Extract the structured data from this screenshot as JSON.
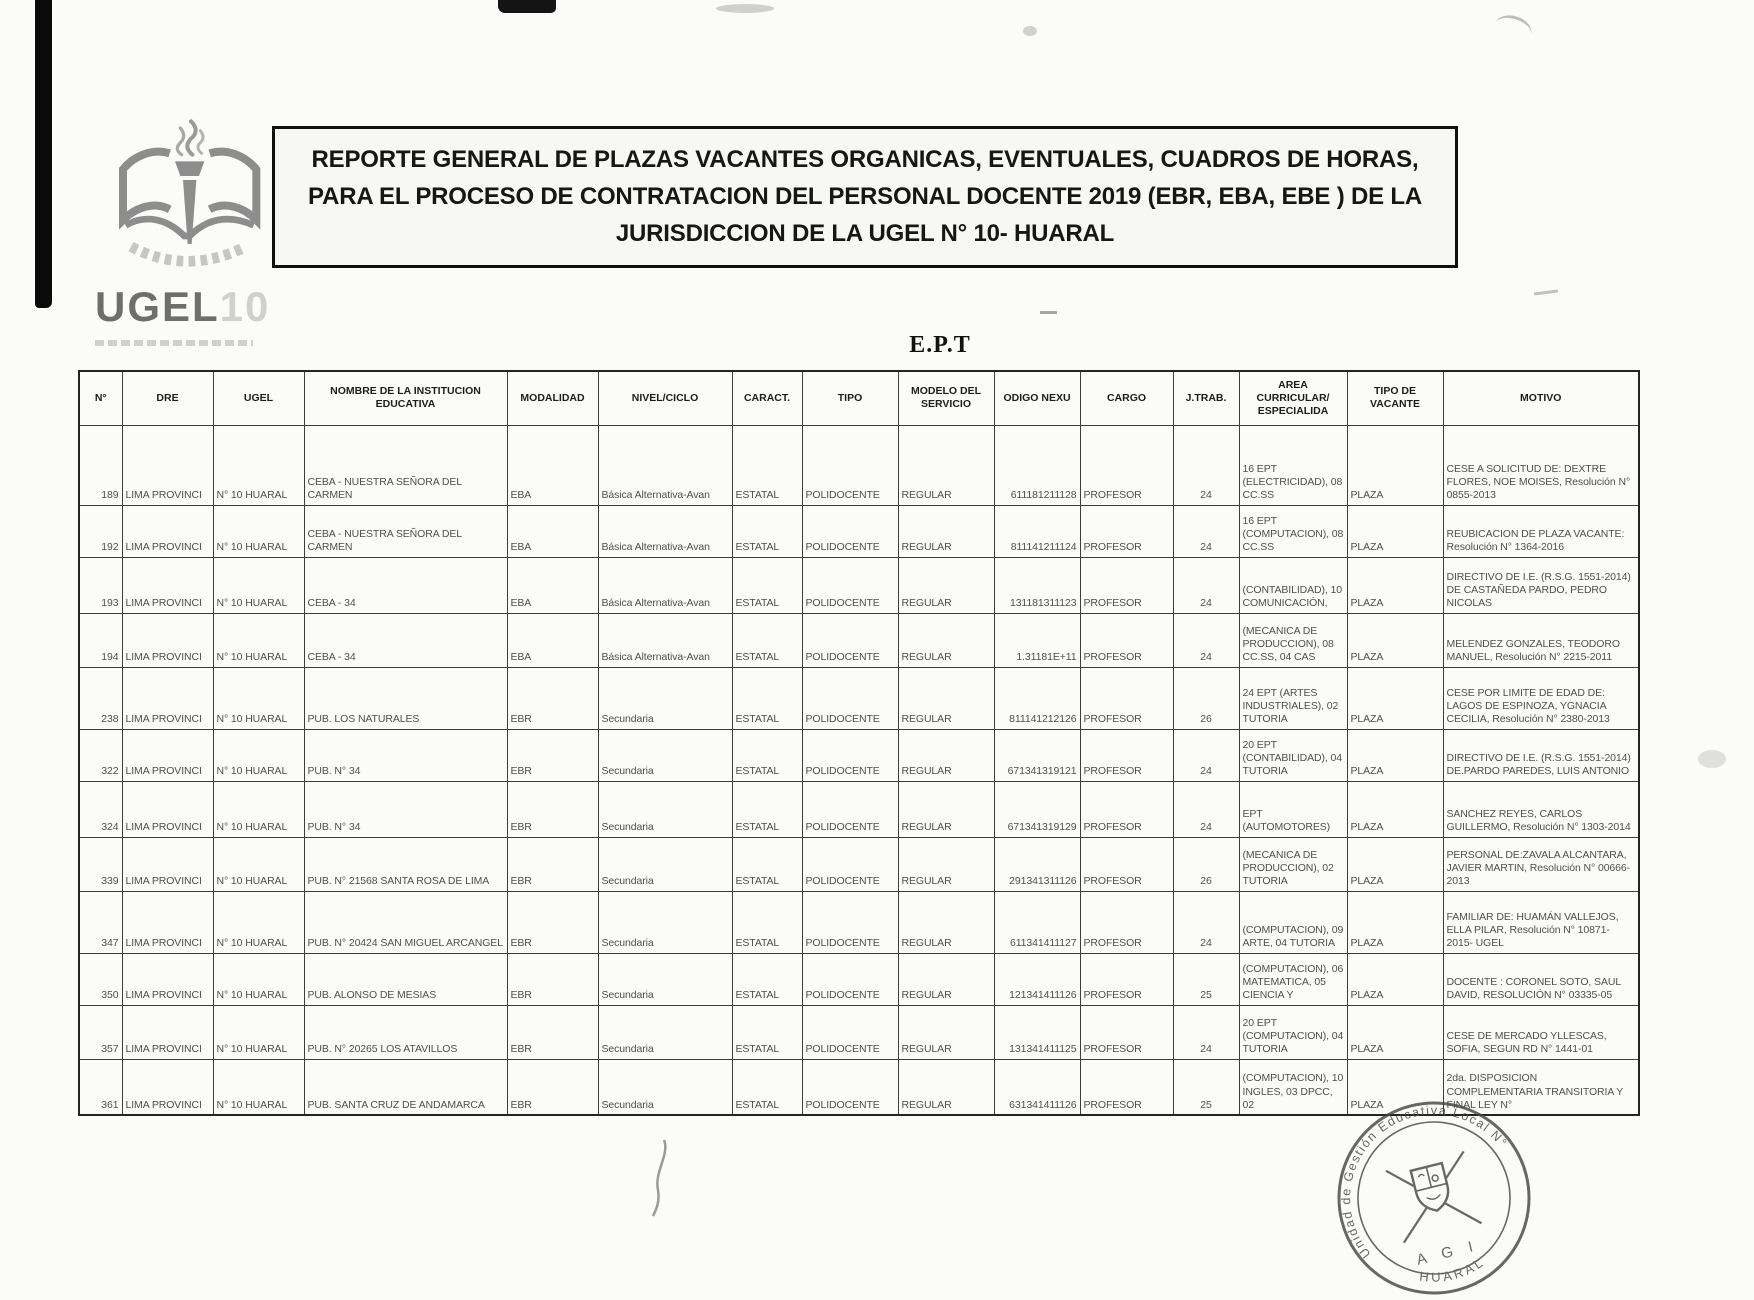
{
  "title": {
    "text": "REPORTE GENERAL DE PLAZAS VACANTES ORGANICAS, EVENTUALES, CUADROS DE HORAS, PARA EL PROCESO DE CONTRATACION DEL PERSONAL DOCENTE 2019 (EBR, EBA, EBE ) DE LA JURISDICCION DE LA UGEL N° 10- HUARAL"
  },
  "logo": {
    "org": "UGEL",
    "number": "10"
  },
  "section": {
    "heading": "E.P.T"
  },
  "table": {
    "columns": [
      "N°",
      "DRE",
      "UGEL",
      "NOMBRE DE LA INSTITUCION EDUCATIVA",
      "MODALIDAD",
      "NIVEL/CICLO",
      "CARACT.",
      "TIPO",
      "MODELO DEL SERVICIO",
      "ODIGO NEXU",
      "CARGO",
      "J.TRAB.",
      "AREA CURRICULAR/ ESPECIALIDA",
      "TIPO DE VACANTE",
      "MOTIVO"
    ],
    "rows": [
      {
        "n": "189",
        "dre": "LIMA PROVINCI",
        "ugel": "N° 10 HUARAL",
        "nombre": "CEBA - NUESTRA SEÑORA DEL CARMEN",
        "modalidad": "EBA",
        "nivel": "Básica Alternativa-Avan",
        "caract": "ESTATAL",
        "tipo": "POLIDOCENTE",
        "modelo": "REGULAR",
        "codigo": "611181211128",
        "cargo": "PROFESOR",
        "jtrab": "24",
        "area": "16 EPT (ELECTRICIDAD), 08 CC.SS",
        "vacante": "PLAZA",
        "motivo": "CESE A SOLICITUD DE: DEXTRE FLORES, NOE MOISES, Resolución N° 0855-2013"
      },
      {
        "n": "192",
        "dre": "LIMA PROVINCI",
        "ugel": "N° 10 HUARAL",
        "nombre": "CEBA - NUESTRA SEÑORA DEL CARMEN",
        "modalidad": "EBA",
        "nivel": "Básica Alternativa-Avan",
        "caract": "ESTATAL",
        "tipo": "POLIDOCENTE",
        "modelo": "REGULAR",
        "codigo": "811141211124",
        "cargo": "PROFESOR",
        "jtrab": "24",
        "area": "16 EPT (COMPUTACION), 08 CC.SS",
        "vacante": "PLAZA",
        "motivo": "REUBICACION DE PLAZA VACANTE: Resolución N° 1364-2016"
      },
      {
        "n": "193",
        "dre": "LIMA PROVINCI",
        "ugel": "N° 10 HUARAL",
        "nombre": "CEBA - 34",
        "modalidad": "EBA",
        "nivel": "Básica Alternativa-Avan",
        "caract": "ESTATAL",
        "tipo": "POLIDOCENTE",
        "modelo": "REGULAR",
        "codigo": "131181311123",
        "cargo": "PROFESOR",
        "jtrab": "24",
        "area": "(CONTABILIDAD), 10 COMUNICACIÓN,",
        "vacante": "PLAZA",
        "motivo": "DIRECTIVO DE I.E. (R.S.G. 1551-2014) DE CASTAÑEDA PARDO, PEDRO NICOLAS"
      },
      {
        "n": "194",
        "dre": "LIMA PROVINCI",
        "ugel": "N° 10 HUARAL",
        "nombre": "CEBA - 34",
        "modalidad": "EBA",
        "nivel": "Básica Alternativa-Avan",
        "caract": "ESTATAL",
        "tipo": "POLIDOCENTE",
        "modelo": "REGULAR",
        "codigo": "1.31181E+11",
        "cargo": "PROFESOR",
        "jtrab": "24",
        "area": "(MECANICA DE PRODUCCION), 08 CC.SS, 04 CAS",
        "vacante": "PLAZA",
        "motivo": "MELENDEZ GONZALES, TEODORO MANUEL, Resolución N° 2215-2011"
      },
      {
        "n": "238",
        "dre": "LIMA PROVINCI",
        "ugel": "N° 10 HUARAL",
        "nombre": "PUB. LOS NATURALES",
        "modalidad": "EBR",
        "nivel": "Secundaria",
        "caract": "ESTATAL",
        "tipo": "POLIDOCENTE",
        "modelo": "REGULAR",
        "codigo": "811141212126",
        "cargo": "PROFESOR",
        "jtrab": "26",
        "area": "24 EPT (ARTES INDUSTRIALES), 02 TUTORIA",
        "vacante": "PLAZA",
        "motivo": "CESE POR LIMITE DE EDAD DE: LAGOS DE ESPINOZA, YGNACIA CECILIA, Resolución N° 2380-2013"
      },
      {
        "n": "322",
        "dre": "LIMA PROVINCI",
        "ugel": "N° 10 HUARAL",
        "nombre": "PUB. N° 34",
        "modalidad": "EBR",
        "nivel": "Secundaria",
        "caract": "ESTATAL",
        "tipo": "POLIDOCENTE",
        "modelo": "REGULAR",
        "codigo": "671341319121",
        "cargo": "PROFESOR",
        "jtrab": "24",
        "area": "20 EPT (CONTABILIDAD), 04 TUTORIA",
        "vacante": "PLAZA",
        "motivo": "DIRECTIVO DE I.E. (R.S.G. 1551-2014) DE.PARDO PAREDES, LUIS ANTONIO"
      },
      {
        "n": "324",
        "dre": "LIMA PROVINCI",
        "ugel": "N° 10 HUARAL",
        "nombre": "PUB. N° 34",
        "modalidad": "EBR",
        "nivel": "Secundaria",
        "caract": "ESTATAL",
        "tipo": "POLIDOCENTE",
        "modelo": "REGULAR",
        "codigo": "671341319129",
        "cargo": "PROFESOR",
        "jtrab": "24",
        "area": "EPT (AUTOMOTORES)",
        "vacante": "PLAZA",
        "motivo": "SANCHEZ REYES, CARLOS GUILLERMO, Resolución N° 1303-2014"
      },
      {
        "n": "339",
        "dre": "LIMA PROVINCI",
        "ugel": "N° 10 HUARAL",
        "nombre": "PUB. N° 21568 SANTA ROSA DE LIMA",
        "modalidad": "EBR",
        "nivel": "Secundaria",
        "caract": "ESTATAL",
        "tipo": "POLIDOCENTE",
        "modelo": "REGULAR",
        "codigo": "291341311126",
        "cargo": "PROFESOR",
        "jtrab": "26",
        "area": "(MECANICA DE PRODUCCION), 02 TUTORIA",
        "vacante": "PLAZA",
        "motivo": "PERSONAL DE:ZAVALA ALCANTARA, JAVIER MARTIN, Resolución N° 00666-2013"
      },
      {
        "n": "347",
        "dre": "LIMA PROVINCI",
        "ugel": "N° 10 HUARAL",
        "nombre": "PUB. N° 20424 SAN MIGUEL ARCANGEL",
        "modalidad": "EBR",
        "nivel": "Secundaria",
        "caract": "ESTATAL",
        "tipo": "POLIDOCENTE",
        "modelo": "REGULAR",
        "codigo": "611341411127",
        "cargo": "PROFESOR",
        "jtrab": "24",
        "area": "(COMPUTACION), 09 ARTE, 04 TUTORIA",
        "vacante": "PLAZA",
        "motivo": "FAMILIAR DE: HUAMÁN VALLEJOS, ELLA PILAR, Resolución N° 10871-2015- UGEL"
      },
      {
        "n": "350",
        "dre": "LIMA PROVINCI",
        "ugel": "N° 10 HUARAL",
        "nombre": "PUB. ALONSO DE MESIAS",
        "modalidad": "EBR",
        "nivel": "Secundaria",
        "caract": "ESTATAL",
        "tipo": "POLIDOCENTE",
        "modelo": "REGULAR",
        "codigo": "121341411126",
        "cargo": "PROFESOR",
        "jtrab": "25",
        "area": "(COMPUTACION), 06 MATEMATICA, 05 CIENCIA Y",
        "vacante": "PLAZA",
        "motivo": "DOCENTE : CORONEL SOTO, SAUL DAVID, RESOLUCIÓN N° 03335-05"
      },
      {
        "n": "357",
        "dre": "LIMA PROVINCI",
        "ugel": "N° 10 HUARAL",
        "nombre": "PUB. N° 20265 LOS ATAVILLOS",
        "modalidad": "EBR",
        "nivel": "Secundaria",
        "caract": "ESTATAL",
        "tipo": "POLIDOCENTE",
        "modelo": "REGULAR",
        "codigo": "131341411125",
        "cargo": "PROFESOR",
        "jtrab": "24",
        "area": "20 EPT (COMPUTACION), 04 TUTORIA",
        "vacante": "PLAZA",
        "motivo": "CESE DE MERCADO YLLESCAS, SOFIA, SEGUN RD N° 1441-01"
      },
      {
        "n": "361",
        "dre": "LIMA PROVINCI",
        "ugel": "N° 10 HUARAL",
        "nombre": "PUB. SANTA CRUZ DE ANDAMARCA",
        "modalidad": "EBR",
        "nivel": "Secundaria",
        "caract": "ESTATAL",
        "tipo": "POLIDOCENTE",
        "modelo": "REGULAR",
        "codigo": "631341411126",
        "cargo": "PROFESOR",
        "jtrab": "25",
        "area": "(COMPUTACION), 10 INGLES, 03 DPCC, 02",
        "vacante": "PLAZA",
        "motivo": "2da. DISPOSICION COMPLEMENTARIA TRANSITORIA Y FINAL LEY N°"
      }
    ]
  },
  "stamp": {
    "arc_text": "Unidad de Gestión Educativa Local N°",
    "bottom_text": "HUARAL",
    "center_text": "A G I"
  }
}
